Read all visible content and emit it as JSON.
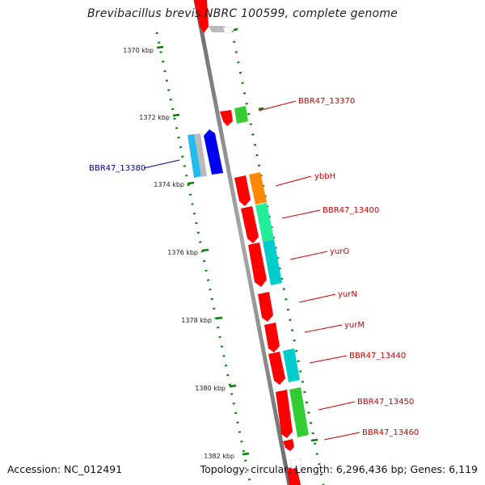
{
  "title": "Brevibacillus brevis NBRC 100599, complete genome",
  "accession": "Accession: NC_012491",
  "topology": "Topology: circular; Length: 6,296,436 bp; Genes: 6,119",
  "colors": {
    "axis": "#808080",
    "ticks": "#008000",
    "forward_label": "#cc0000",
    "reverse_label": "#000099"
  },
  "scale_labels": [
    "1370 kbp",
    "1372 kbp",
    "1374 kbp",
    "1376 kbp",
    "1378 kbp",
    "1380 kbp",
    "1382 kbp"
  ],
  "gene_labels": [
    {
      "text": "BBR47_13370",
      "strand": "forward"
    },
    {
      "text": "BBR47_13380",
      "strand": "reverse"
    },
    {
      "text": "ybbH",
      "strand": "forward"
    },
    {
      "text": "BBR47_13400",
      "strand": "forward"
    },
    {
      "text": "yurO",
      "strand": "forward"
    },
    {
      "text": "yurN",
      "strand": "forward"
    },
    {
      "text": "yurM",
      "strand": "forward"
    },
    {
      "text": "BBR47_13440",
      "strand": "forward"
    },
    {
      "text": "BBR47_13450",
      "strand": "forward"
    },
    {
      "text": "BBR47_13460",
      "strand": "forward"
    }
  ],
  "feature_colors": {
    "cds": "#ff0000",
    "green": "#33cc33",
    "orange": "#ff8800",
    "spring_green": "#22ee99",
    "cyan": "#00cccc",
    "light_blue": "#22bbee",
    "gray": "#bbbbbb",
    "blue": "#0000ee"
  }
}
